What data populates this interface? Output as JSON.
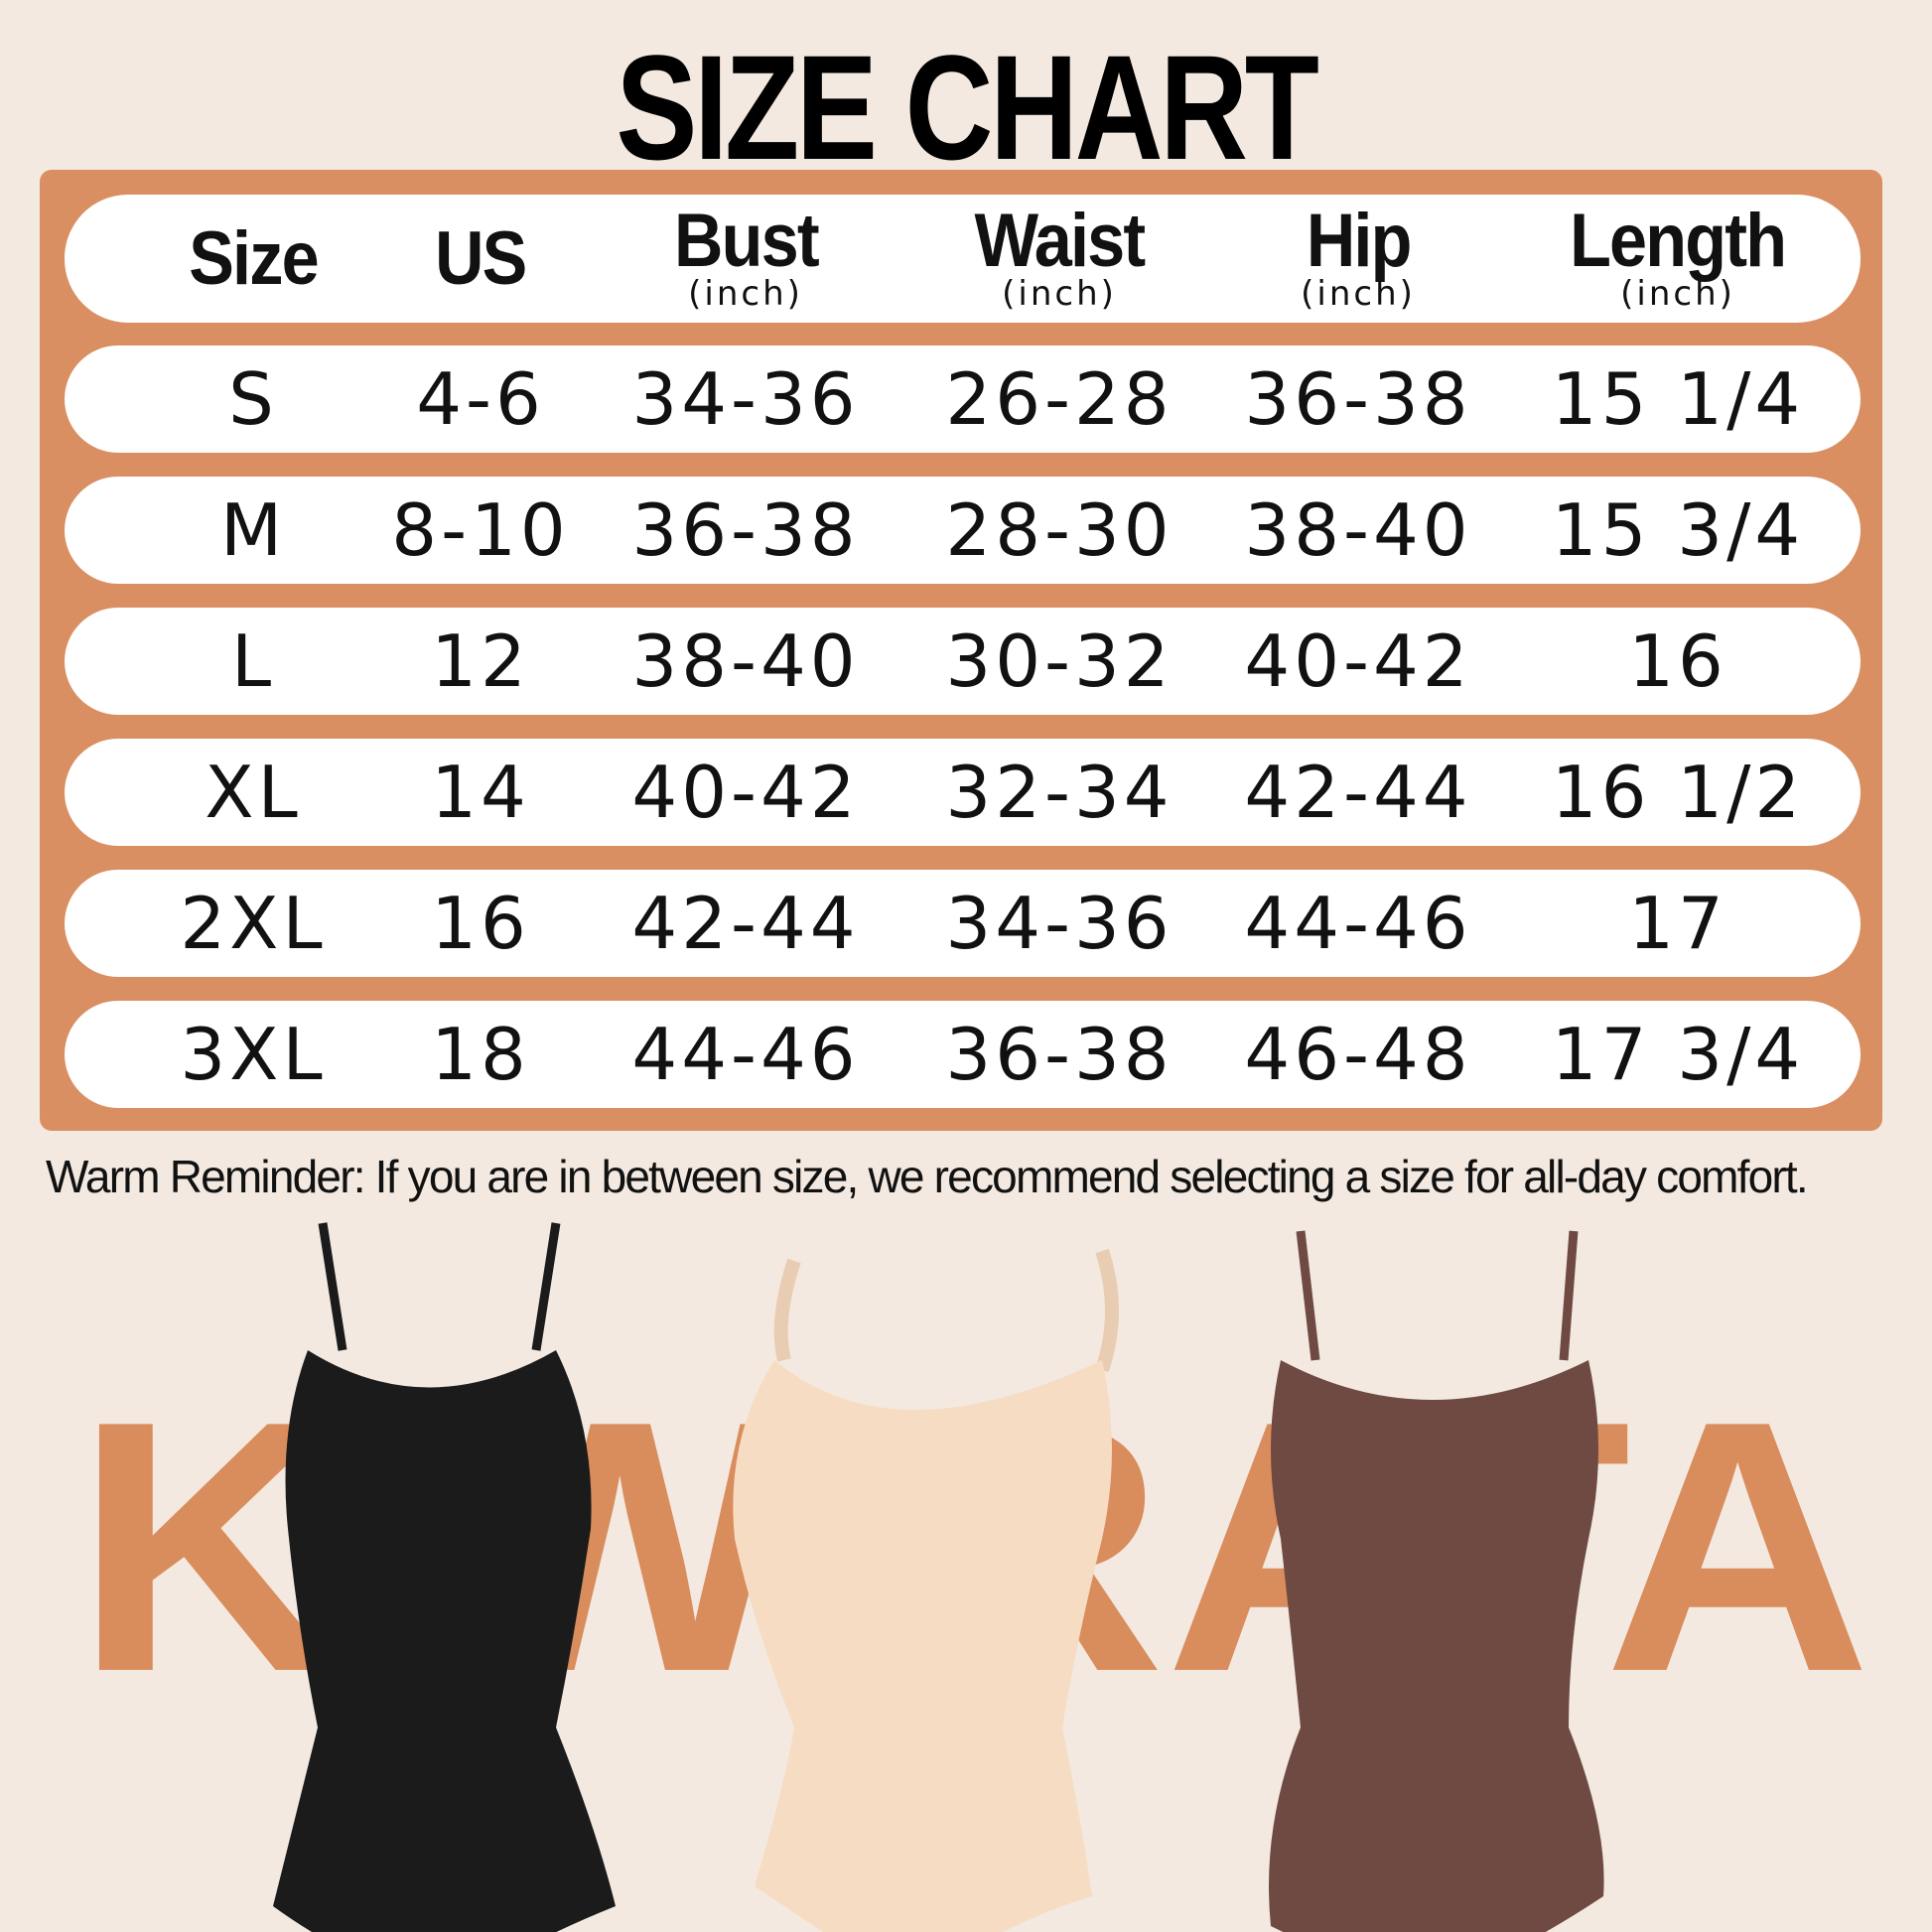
{
  "title": "SIZE CHART",
  "table": {
    "headers": [
      {
        "label": "Size",
        "unit": ""
      },
      {
        "label": "US",
        "unit": ""
      },
      {
        "label": "Bust",
        "unit": "(inch)"
      },
      {
        "label": "Waist",
        "unit": "(inch)"
      },
      {
        "label": "Hip",
        "unit": "(inch)"
      },
      {
        "label": "Length",
        "unit": "(inch)"
      }
    ],
    "rows": [
      [
        "S",
        "4-6",
        "34-36",
        "26-28",
        "36-38",
        "15 1/4"
      ],
      [
        "M",
        "8-10",
        "36-38",
        "28-30",
        "38-40",
        "15 3/4"
      ],
      [
        "L",
        "12",
        "38-40",
        "30-32",
        "40-42",
        "16"
      ],
      [
        "XL",
        "14",
        "40-42",
        "32-34",
        "42-44",
        "16 1/2"
      ],
      [
        "2XL",
        "16",
        "42-44",
        "34-36",
        "44-46",
        "17"
      ],
      [
        "3XL",
        "18",
        "44-46",
        "36-38",
        "46-48",
        "17 3/4"
      ]
    ]
  },
  "reminder": "Warm Reminder: If you are in between size, we recommend selecting a size for all-day comfort.",
  "watermark": "KIWIRATA",
  "products": [
    {
      "name": "black-bodysuit",
      "color": "#1b1b1b"
    },
    {
      "name": "nude-bodysuit",
      "color": "#f6dcc3"
    },
    {
      "name": "brown-bodysuit",
      "color": "#6e4a42"
    }
  ],
  "colors": {
    "background": "#f3e9e0",
    "accent": "#d98f62",
    "watermark": "#d98c5c"
  }
}
